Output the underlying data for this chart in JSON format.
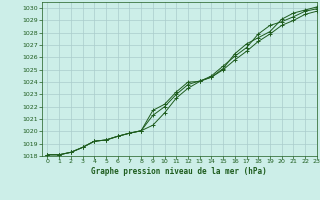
{
  "title": "Graphe pression niveau de la mer (hPa)",
  "background_color": "#cceee8",
  "grid_color": "#aacccc",
  "line_color": "#1e5c1e",
  "xlim": [
    -0.5,
    23
  ],
  "ylim": [
    1018,
    1030.5
  ],
  "xticks": [
    0,
    1,
    2,
    3,
    4,
    5,
    6,
    7,
    8,
    9,
    10,
    11,
    12,
    13,
    14,
    15,
    16,
    17,
    18,
    19,
    20,
    21,
    22,
    23
  ],
  "yticks": [
    1018,
    1019,
    1020,
    1021,
    1022,
    1023,
    1024,
    1025,
    1026,
    1027,
    1028,
    1029,
    1030
  ],
  "series1_x": [
    0,
    1,
    2,
    3,
    4,
    5,
    6,
    7,
    8,
    9,
    10,
    11,
    12,
    13,
    14,
    15,
    16,
    17,
    18,
    19,
    20,
    21,
    22,
    23
  ],
  "series1_y": [
    1018.1,
    1018.1,
    1018.3,
    1018.7,
    1019.2,
    1019.3,
    1019.6,
    1019.85,
    1020.05,
    1021.7,
    1022.2,
    1023.2,
    1024.0,
    1024.05,
    1024.4,
    1025.1,
    1026.3,
    1027.1,
    1027.6,
    1028.1,
    1029.1,
    1029.6,
    1029.85,
    1030.1
  ],
  "series2_x": [
    0,
    1,
    2,
    3,
    4,
    5,
    6,
    7,
    8,
    9,
    10,
    11,
    12,
    13,
    14,
    15,
    16,
    17,
    18,
    19,
    20,
    21,
    22,
    23
  ],
  "series2_y": [
    1018.1,
    1018.1,
    1018.3,
    1018.7,
    1019.2,
    1019.3,
    1019.6,
    1019.85,
    1020.05,
    1020.5,
    1021.5,
    1022.7,
    1023.5,
    1024.05,
    1024.5,
    1025.3,
    1026.1,
    1026.8,
    1027.9,
    1028.6,
    1028.9,
    1029.3,
    1029.75,
    1029.95
  ],
  "series3_x": [
    0,
    1,
    2,
    3,
    4,
    5,
    6,
    7,
    8,
    9,
    10,
    11,
    12,
    13,
    14,
    15,
    16,
    17,
    18,
    19,
    20,
    21,
    22,
    23
  ],
  "series3_y": [
    1018.1,
    1018.1,
    1018.3,
    1018.7,
    1019.2,
    1019.3,
    1019.6,
    1019.85,
    1020.05,
    1021.3,
    1022.0,
    1023.0,
    1023.8,
    1024.1,
    1024.4,
    1025.0,
    1025.8,
    1026.5,
    1027.3,
    1027.9,
    1028.6,
    1029.0,
    1029.5,
    1029.75
  ]
}
